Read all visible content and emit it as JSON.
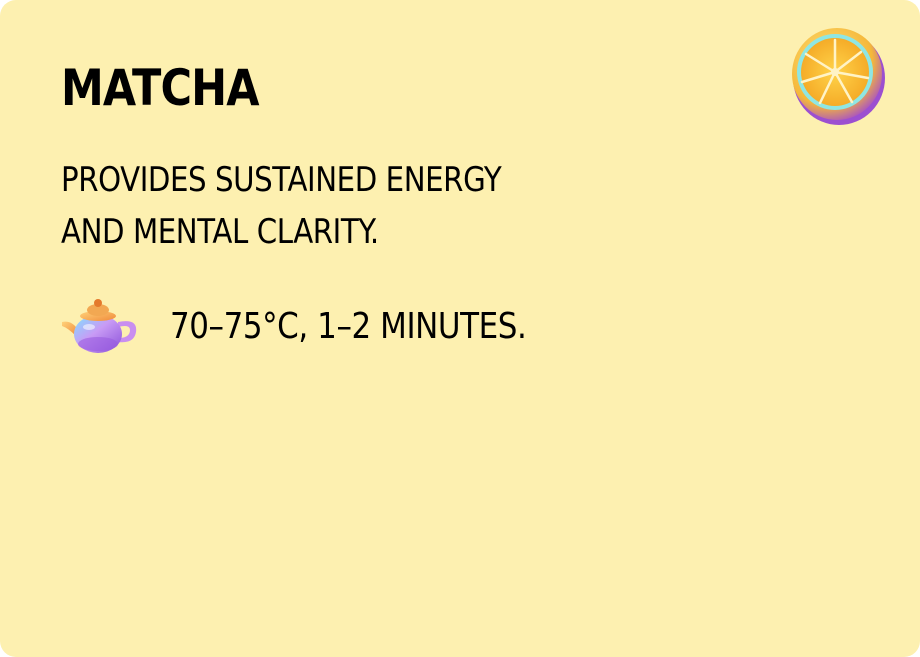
{
  "card": {
    "title": "MATCHA",
    "description": "PROVIDES SUSTAINED ENERGY AND MENTAL CLARITY.",
    "brew": {
      "icon": "teapot-icon",
      "instructions": "70–75°C, 1–2 MINUTES."
    },
    "corner_icon": "citrus-slice-icon",
    "colors": {
      "background": "#fdf0b0",
      "text": "#000000"
    }
  }
}
